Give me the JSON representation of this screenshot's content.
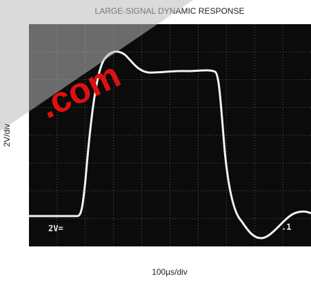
{
  "title": "LARGE-SIGNAL DYNAMIC RESPONSE",
  "y_label": "2V/div",
  "x_label": "100µs/div",
  "scope_labels": {
    "left": "2V=",
    "right": ".1"
  },
  "watermark": ".com"
}
